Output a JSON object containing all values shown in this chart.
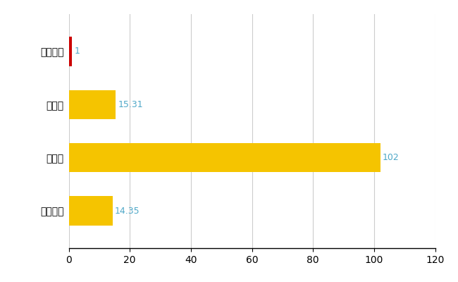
{
  "categories": [
    "東伊豆町",
    "県平均",
    "県最大",
    "全国平均"
  ],
  "values": [
    1,
    15.31,
    102,
    14.35
  ],
  "bar_colors": [
    "#cc0000",
    "#f5c400",
    "#f5c400",
    "#f5c400"
  ],
  "value_labels": [
    "1",
    "15.31",
    "102",
    "14.35"
  ],
  "label_color": "#4fa8c8",
  "xlim": [
    0,
    120
  ],
  "xticks": [
    0,
    20,
    40,
    60,
    80,
    100,
    120
  ],
  "grid_color": "#cccccc",
  "background_color": "#ffffff",
  "bar_height": 0.55
}
